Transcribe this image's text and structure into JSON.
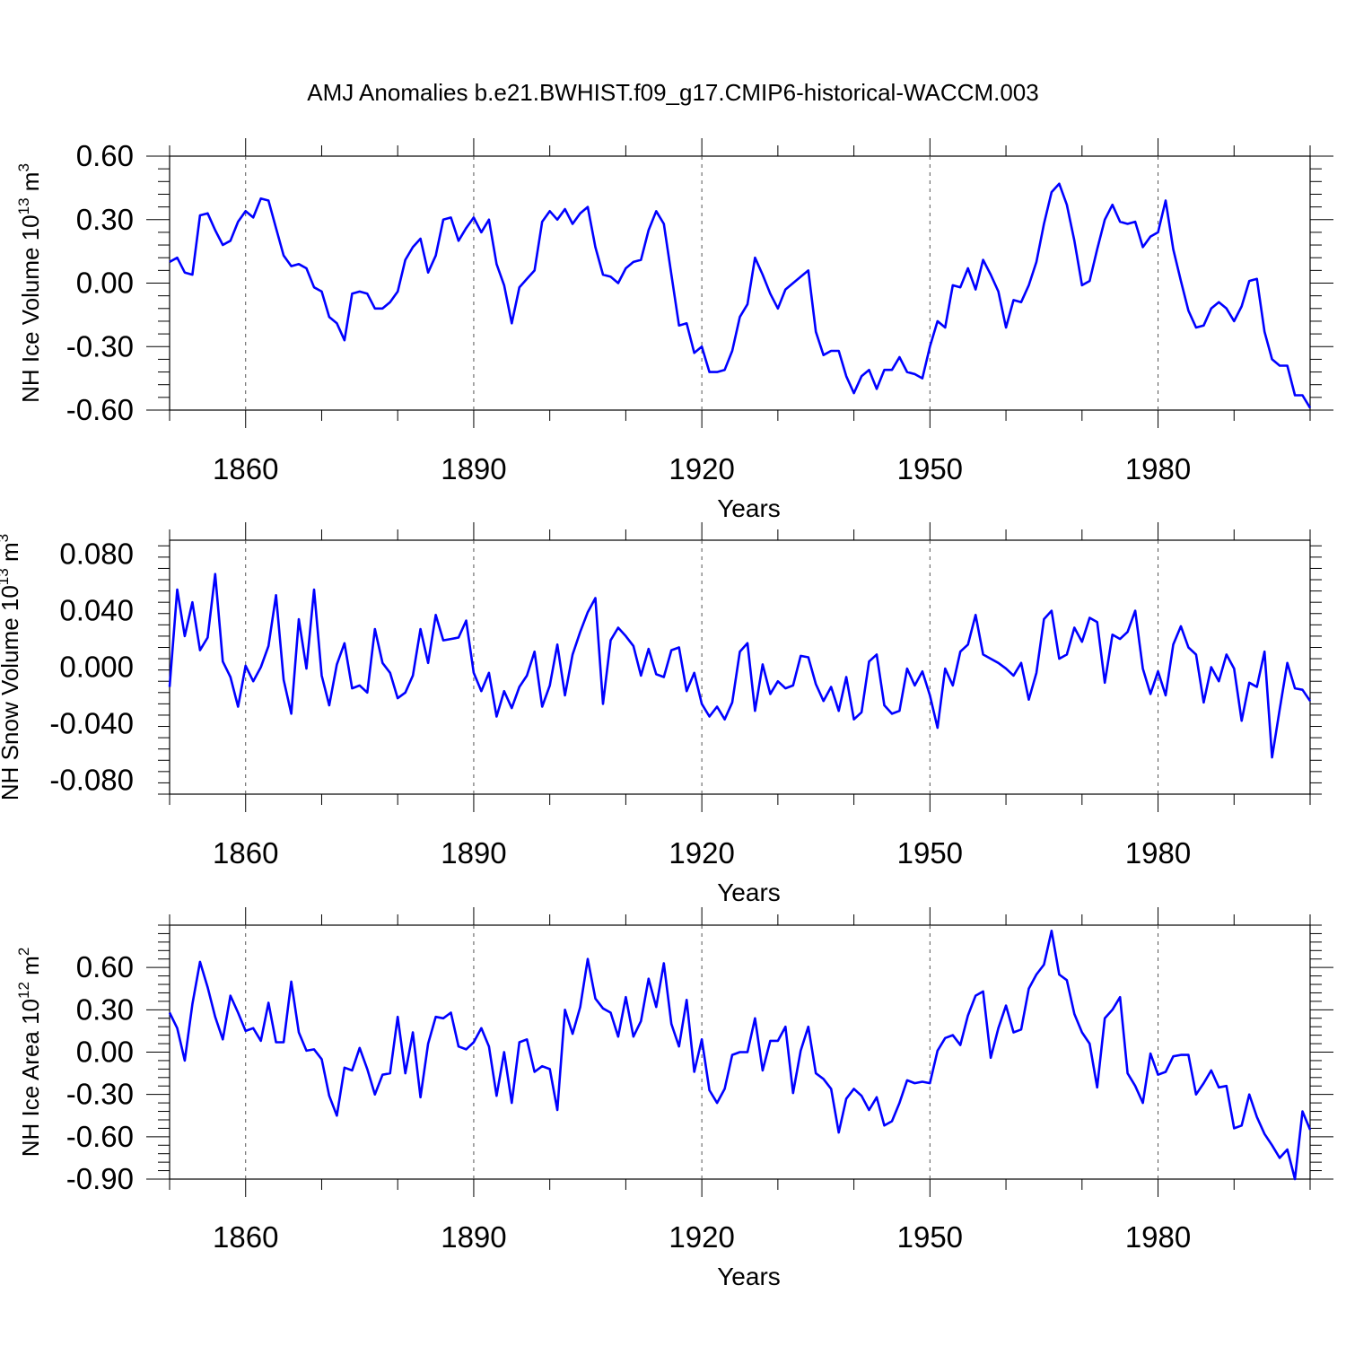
{
  "title": "AMJ Anomalies b.e21.BWHIST.f09_g17.CMIP6-historical-WACCM.003",
  "colors": {
    "line": "#0000ff",
    "axis": "#000000",
    "grid": "#555555",
    "background": "#ffffff"
  },
  "chart_data": [
    {
      "type": "line",
      "ylabel_main": "NH Ice Volume 10",
      "ylabel_exp": "13",
      "ylabel_unit": " m",
      "ylabel_unit_exp": "3",
      "xlabel": "Years",
      "xlim": [
        1850,
        2000
      ],
      "ylim": [
        -0.6,
        0.6
      ],
      "xticks": [
        1860,
        1890,
        1920,
        1950,
        1980
      ],
      "xtick_labels": [
        "1860",
        "1890",
        "1920",
        "1950",
        "1980"
      ],
      "yticks": [
        -0.6,
        -0.3,
        0.0,
        0.3,
        0.6
      ],
      "ytick_labels": [
        "-0.60",
        "-0.30",
        "0.00",
        "0.30",
        "0.60"
      ],
      "grid": "vertical dashed at labeled x ticks",
      "series": [
        {
          "x_start": 1850,
          "values": [
            0.1,
            0.12,
            0.05,
            0.04,
            0.32,
            0.33,
            0.25,
            0.18,
            0.2,
            0.29,
            0.34,
            0.31,
            0.4,
            0.39,
            0.26,
            0.13,
            0.08,
            0.09,
            0.07,
            -0.02,
            -0.04,
            -0.16,
            -0.19,
            -0.27,
            -0.05,
            -0.04,
            -0.05,
            -0.12,
            -0.12,
            -0.09,
            -0.04,
            0.11,
            0.17,
            0.21,
            0.05,
            0.13,
            0.3,
            0.31,
            0.2,
            0.26,
            0.31,
            0.24,
            0.3,
            0.09,
            -0.01,
            -0.19,
            -0.02,
            0.02,
            0.06,
            0.29,
            0.34,
            0.3,
            0.35,
            0.28,
            0.33,
            0.36,
            0.17,
            0.04,
            0.03,
            0.0,
            0.07,
            0.1,
            0.11,
            0.25,
            0.34,
            0.28,
            0.04,
            -0.2,
            -0.19,
            -0.33,
            -0.3,
            -0.42,
            -0.42,
            -0.41,
            -0.32,
            -0.16,
            -0.1,
            0.12,
            0.04,
            -0.05,
            -0.12,
            -0.03,
            0.0,
            0.03,
            0.06,
            -0.23,
            -0.34,
            -0.32,
            -0.32,
            -0.44,
            -0.52,
            -0.44,
            -0.41,
            -0.5,
            -0.41,
            -0.41,
            -0.35,
            -0.42,
            -0.43,
            -0.45,
            -0.3,
            -0.18,
            -0.21,
            -0.01,
            -0.02,
            0.07,
            -0.03,
            0.11,
            0.04,
            -0.04,
            -0.21,
            -0.08,
            -0.09,
            -0.01,
            0.1,
            0.28,
            0.43,
            0.47,
            0.37,
            0.2,
            -0.01,
            0.01,
            0.16,
            0.3,
            0.37,
            0.29,
            0.28,
            0.29,
            0.17,
            0.22,
            0.24,
            0.39,
            0.16,
            0.01,
            -0.13,
            -0.21,
            -0.2,
            -0.12,
            -0.09,
            -0.12,
            -0.18,
            -0.11,
            0.01,
            0.02,
            -0.23,
            -0.36,
            -0.39,
            -0.39,
            -0.53,
            -0.53,
            -0.59
          ]
        }
      ]
    },
    {
      "type": "line",
      "ylabel_main": "NH Snow Volume 10",
      "ylabel_exp": "13",
      "ylabel_unit": " m",
      "ylabel_unit_exp": "3",
      "xlabel": "Years",
      "xlim": [
        1850,
        2000
      ],
      "ylim": [
        -0.09,
        0.09
      ],
      "xticks": [
        1860,
        1890,
        1920,
        1950,
        1980
      ],
      "xtick_labels": [
        "1860",
        "1890",
        "1920",
        "1950",
        "1980"
      ],
      "yticks": [
        -0.08,
        -0.04,
        0.0,
        0.04,
        0.08
      ],
      "ytick_labels": [
        "-0.080",
        "-0.040",
        "0.000",
        "0.040",
        "0.080"
      ],
      "grid": "vertical dashed at labeled x ticks",
      "series": [
        {
          "x_start": 1850,
          "values": [
            -0.014,
            0.055,
            0.022,
            0.046,
            0.012,
            0.021,
            0.066,
            0.004,
            -0.007,
            -0.028,
            0.001,
            -0.01,
            0.0,
            0.015,
            0.051,
            -0.009,
            -0.033,
            0.034,
            -0.001,
            0.055,
            -0.006,
            -0.027,
            0.002,
            0.017,
            -0.015,
            -0.013,
            -0.018,
            0.027,
            0.003,
            -0.004,
            -0.022,
            -0.018,
            -0.006,
            0.027,
            0.003,
            0.037,
            0.019,
            0.02,
            0.021,
            0.033,
            -0.004,
            -0.017,
            -0.004,
            -0.035,
            -0.017,
            -0.029,
            -0.014,
            -0.006,
            0.011,
            -0.028,
            -0.013,
            0.016,
            -0.02,
            0.009,
            0.025,
            0.039,
            0.049,
            -0.026,
            0.019,
            0.028,
            0.022,
            0.015,
            -0.006,
            0.013,
            -0.005,
            -0.007,
            0.012,
            0.014,
            -0.017,
            -0.004,
            -0.026,
            -0.035,
            -0.028,
            -0.037,
            -0.025,
            0.011,
            0.017,
            -0.031,
            0.002,
            -0.019,
            -0.01,
            -0.015,
            -0.013,
            0.008,
            0.007,
            -0.012,
            -0.024,
            -0.014,
            -0.031,
            -0.007,
            -0.037,
            -0.032,
            0.004,
            0.009,
            -0.027,
            -0.033,
            -0.031,
            -0.001,
            -0.013,
            -0.003,
            -0.02,
            -0.043,
            -0.001,
            -0.013,
            0.011,
            0.016,
            0.037,
            0.009,
            0.006,
            0.003,
            -0.001,
            -0.006,
            0.003,
            -0.023,
            -0.004,
            0.034,
            0.04,
            0.006,
            0.009,
            0.028,
            0.018,
            0.035,
            0.032,
            -0.011,
            0.023,
            0.02,
            0.025,
            0.04,
            -0.001,
            -0.019,
            -0.003,
            -0.02,
            0.016,
            0.029,
            0.014,
            0.009,
            -0.025,
            0.0,
            -0.01,
            0.009,
            -0.001,
            -0.038,
            -0.011,
            -0.014,
            0.011,
            -0.064,
            -0.03,
            0.003,
            -0.015,
            -0.016,
            -0.024
          ]
        }
      ]
    },
    {
      "type": "line",
      "ylabel_main": "NH Ice Area 10",
      "ylabel_exp": "12",
      "ylabel_unit": " m",
      "ylabel_unit_exp": "2",
      "xlabel": "Years",
      "xlim": [
        1850,
        2000
      ],
      "ylim": [
        -0.9,
        0.9
      ],
      "xticks": [
        1860,
        1890,
        1920,
        1950,
        1980
      ],
      "xtick_labels": [
        "1860",
        "1890",
        "1920",
        "1950",
        "1980"
      ],
      "yticks": [
        -0.9,
        -0.6,
        -0.3,
        0.0,
        0.3,
        0.6
      ],
      "ytick_labels": [
        "-0.90",
        "-0.60",
        "-0.30",
        "0.00",
        "0.30",
        "0.60"
      ],
      "grid": "vertical dashed at labeled x ticks",
      "series": [
        {
          "x_start": 1850,
          "values": [
            0.28,
            0.17,
            -0.06,
            0.34,
            0.64,
            0.46,
            0.25,
            0.09,
            0.4,
            0.28,
            0.15,
            0.17,
            0.08,
            0.35,
            0.07,
            0.07,
            0.5,
            0.14,
            0.01,
            0.02,
            -0.05,
            -0.31,
            -0.45,
            -0.11,
            -0.13,
            0.03,
            -0.12,
            -0.3,
            -0.16,
            -0.15,
            0.25,
            -0.15,
            0.14,
            -0.32,
            0.06,
            0.25,
            0.24,
            0.28,
            0.04,
            0.02,
            0.07,
            0.17,
            0.04,
            -0.31,
            0.0,
            -0.36,
            0.07,
            0.09,
            -0.14,
            -0.1,
            -0.12,
            -0.41,
            0.3,
            0.13,
            0.32,
            0.66,
            0.38,
            0.31,
            0.28,
            0.11,
            0.39,
            0.11,
            0.22,
            0.52,
            0.32,
            0.63,
            0.2,
            0.04,
            0.37,
            -0.14,
            0.09,
            -0.27,
            -0.36,
            -0.26,
            -0.02,
            0.0,
            0.0,
            0.24,
            -0.13,
            0.08,
            0.08,
            0.18,
            -0.29,
            0.01,
            0.18,
            -0.15,
            -0.19,
            -0.26,
            -0.57,
            -0.33,
            -0.26,
            -0.31,
            -0.41,
            -0.32,
            -0.52,
            -0.49,
            -0.36,
            -0.2,
            -0.22,
            -0.21,
            -0.22,
            0.01,
            0.1,
            0.12,
            0.05,
            0.26,
            0.4,
            0.43,
            -0.04,
            0.17,
            0.33,
            0.14,
            0.16,
            0.45,
            0.55,
            0.62,
            0.86,
            0.55,
            0.51,
            0.27,
            0.14,
            0.06,
            -0.25,
            0.24,
            0.3,
            0.39,
            -0.15,
            -0.24,
            -0.36,
            -0.01,
            -0.16,
            -0.14,
            -0.03,
            -0.02,
            -0.02,
            -0.3,
            -0.22,
            -0.13,
            -0.25,
            -0.24,
            -0.54,
            -0.52,
            -0.3,
            -0.46,
            -0.58,
            -0.66,
            -0.75,
            -0.69,
            -0.9,
            -0.42,
            -0.55
          ]
        }
      ]
    }
  ]
}
